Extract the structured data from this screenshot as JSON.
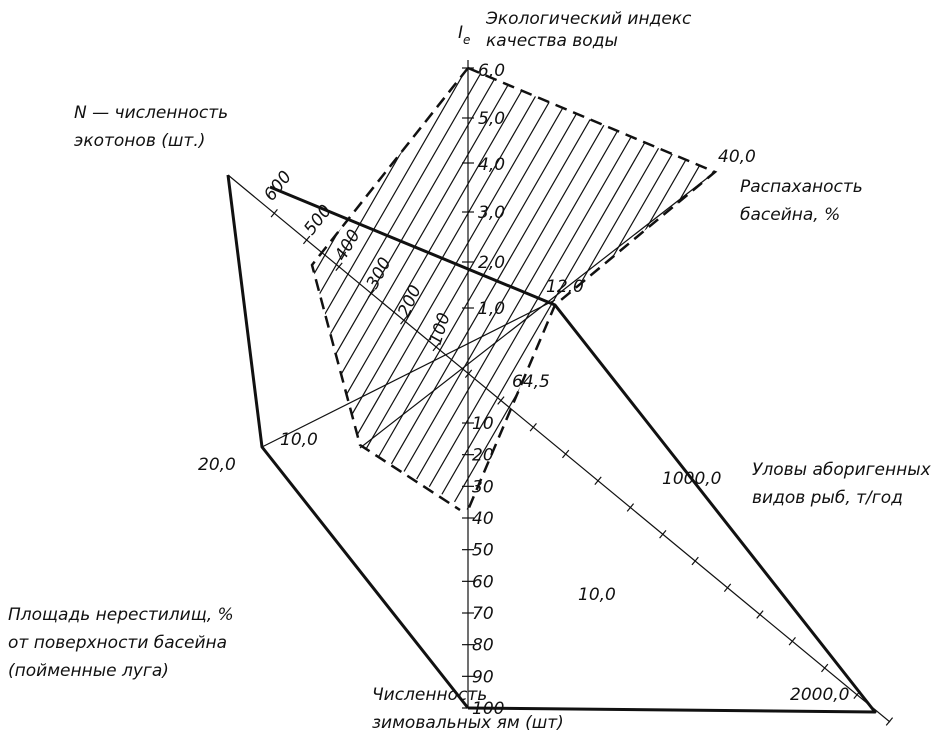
{
  "axes": {
    "ie": {
      "symbol": "I",
      "subscript": "e",
      "label": [
        "Экологический индекс",
        "качества воды"
      ],
      "ticks": [
        "6,0",
        "5,0",
        "4,0",
        "3,0",
        "2,0",
        "1,0"
      ]
    },
    "ecotones": {
      "label": [
        "N — численность",
        "экотонов (шт.)"
      ],
      "ticks": [
        "600",
        "500",
        "400",
        "300",
        "200",
        "100"
      ]
    },
    "plowed": {
      "label": [
        "Распаханость",
        "басейна, %"
      ],
      "ticks": [
        "40,0",
        "12,0"
      ]
    },
    "catch": {
      "label": [
        "Уловы аборигенных",
        "видов рыб, т/год"
      ],
      "ticks": [
        "1000,0",
        "2000,0"
      ]
    },
    "spawning": {
      "label": [
        "Площадь нерестилищ, %",
        "от поверхности басейна",
        "(пойменные луга)"
      ],
      "ticks": [
        "20,0",
        "10,0"
      ]
    },
    "pits": {
      "label": [
        "Численность",
        "зимовальных ям (шт)"
      ],
      "ticks": [
        "64,5",
        "10",
        "20",
        "30",
        "40",
        "50",
        "60",
        "70",
        "80",
        "90",
        "100"
      ]
    }
  },
  "annotations": [
    "10,0"
  ]
}
